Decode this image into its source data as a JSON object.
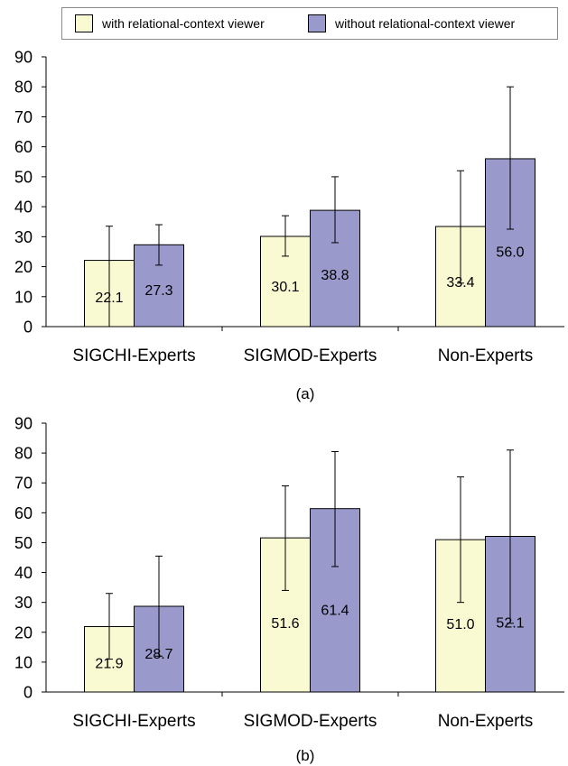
{
  "legend": {
    "items": [
      {
        "label": "with relational-context viewer",
        "color": "#fafad2"
      },
      {
        "label": "without relational-context viewer",
        "color": "#9999cc"
      }
    ]
  },
  "chart_data": [
    {
      "type": "bar",
      "caption": "(a)",
      "categories": [
        "SIGCHI-Experts",
        "SIGMOD-Experts",
        "Non-Experts"
      ],
      "ylim": [
        0,
        90
      ],
      "yticks": [
        0,
        10,
        20,
        30,
        40,
        50,
        60,
        70,
        80,
        90
      ],
      "grid": false,
      "legend_position": "top",
      "series": [
        {
          "name": "with relational-context viewer",
          "color": "#fafad2",
          "values": [
            22.1,
            30.1,
            33.4
          ],
          "labels": [
            "22.1",
            "30.1",
            "33.4"
          ],
          "error_low": [
            0,
            23.5,
            14.5
          ],
          "error_high": [
            33.5,
            37,
            52
          ]
        },
        {
          "name": "without relational-context viewer",
          "color": "#9999cc",
          "values": [
            27.3,
            38.8,
            56.0
          ],
          "labels": [
            "27.3",
            "38.8",
            "56.0"
          ],
          "error_low": [
            20.5,
            28,
            32.5
          ],
          "error_high": [
            34,
            50,
            80
          ]
        }
      ]
    },
    {
      "type": "bar",
      "caption": "(b)",
      "categories": [
        "SIGCHI-Experts",
        "SIGMOD-Experts",
        "Non-Experts"
      ],
      "ylim": [
        0,
        90
      ],
      "yticks": [
        0,
        10,
        20,
        30,
        40,
        50,
        60,
        70,
        80,
        90
      ],
      "grid": false,
      "series": [
        {
          "name": "with relational-context viewer",
          "color": "#fafad2",
          "values": [
            21.9,
            51.6,
            51.0
          ],
          "labels": [
            "21.9",
            "51.6",
            "51.0"
          ],
          "error_low": [
            11,
            34,
            30
          ],
          "error_high": [
            33,
            69,
            72
          ]
        },
        {
          "name": "without relational-context viewer",
          "color": "#9999cc",
          "values": [
            28.7,
            61.4,
            52.1
          ],
          "labels": [
            "28.7",
            "61.4",
            "52.1"
          ],
          "error_low": [
            12,
            42,
            23
          ],
          "error_high": [
            45.5,
            80.5,
            81
          ]
        }
      ]
    }
  ]
}
